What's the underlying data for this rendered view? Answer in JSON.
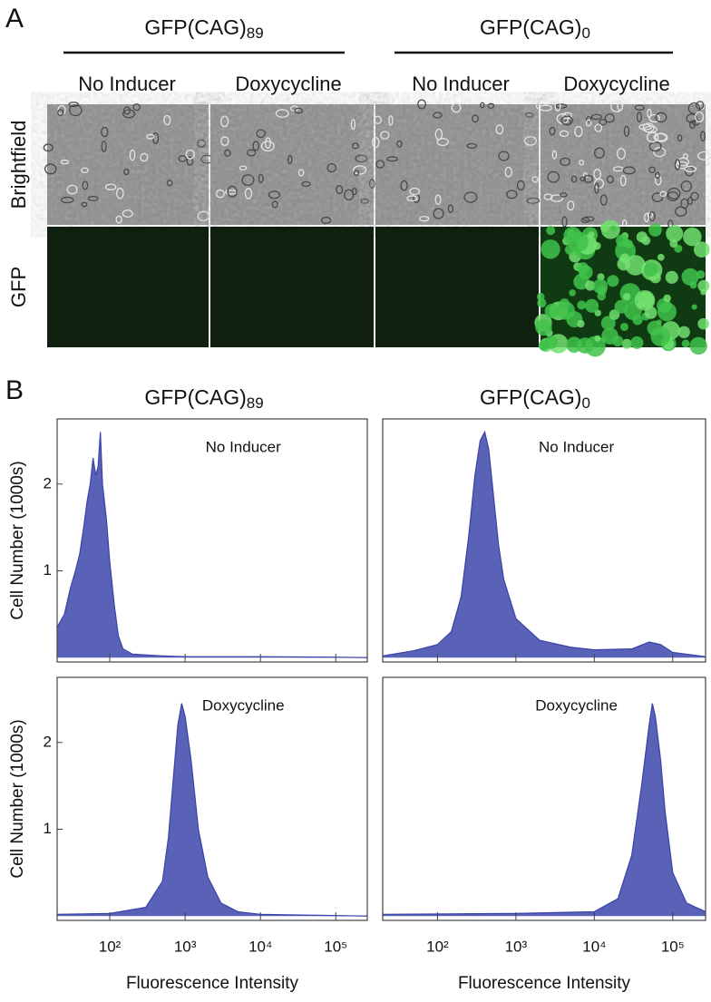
{
  "panel_a": {
    "label": "A",
    "groups": [
      {
        "title": "GFP(CAG)",
        "title_subscript": "89",
        "conditions": [
          "No Inducer",
          "Doxycycline"
        ]
      },
      {
        "title": "GFP(CAG)",
        "title_subscript": "0",
        "conditions": [
          "No Inducer",
          "Doxycycline"
        ]
      }
    ],
    "rows": [
      "Brightfield",
      "GFP"
    ]
  },
  "panel_b": {
    "label": "B",
    "columns": [
      {
        "title": "GFP(CAG)",
        "title_subscript": "89"
      },
      {
        "title": "GFP(CAG)",
        "title_subscript": "0"
      }
    ]
  },
  "chart_data": [
    {
      "type": "area",
      "annotation": "No Inducer",
      "ylabel": "Cell Number (1000s)",
      "color": "#5a62b8",
      "xlog": true,
      "xlim": [
        20,
        262144
      ],
      "ylim": [
        -0.05,
        2.75
      ],
      "yticks": [
        1,
        2
      ],
      "xticks": [
        100,
        1000,
        10000,
        100000
      ],
      "x": [
        20,
        25,
        30,
        35,
        40,
        45,
        50,
        55,
        60,
        65,
        70,
        75,
        80,
        90,
        100,
        115,
        130,
        150,
        200,
        500,
        1000,
        10000,
        100000,
        262144
      ],
      "values": [
        0.35,
        0.5,
        0.8,
        1.0,
        1.2,
        1.5,
        1.8,
        2.0,
        2.3,
        2.1,
        2.2,
        2.6,
        2.0,
        1.6,
        1.1,
        0.6,
        0.25,
        0.1,
        0.04,
        0.02,
        0.01,
        0.01,
        0.005,
        0
      ]
    },
    {
      "type": "area",
      "annotation": "No Inducer",
      "color": "#5a62b8",
      "xlog": true,
      "xlim": [
        20,
        262144
      ],
      "ylim": [
        -0.05,
        2.75
      ],
      "xticks": [
        100,
        1000,
        10000,
        100000
      ],
      "x": [
        20,
        50,
        100,
        150,
        200,
        250,
        300,
        350,
        400,
        450,
        500,
        600,
        700,
        1000,
        2000,
        5000,
        10000,
        30000,
        50000,
        70000,
        100000,
        262144
      ],
      "values": [
        0.02,
        0.08,
        0.15,
        0.3,
        0.7,
        1.4,
        2.1,
        2.5,
        2.6,
        2.4,
        2.0,
        1.3,
        0.9,
        0.45,
        0.2,
        0.12,
        0.09,
        0.1,
        0.18,
        0.15,
        0.06,
        0.01
      ]
    },
    {
      "type": "area",
      "annotation": "Doxycycline",
      "ylabel": "Cell Number (1000s)",
      "xlabel": "Fluorescence Intensity",
      "color": "#5a62b8",
      "xlog": true,
      "xlim": [
        20,
        262144
      ],
      "ylim": [
        -0.05,
        2.75
      ],
      "yticks": [
        1,
        2
      ],
      "xticks": [
        {
          "value": 100,
          "label": "10²"
        },
        {
          "value": 1000,
          "label": "10³"
        },
        {
          "value": 10000,
          "label": "10⁴"
        },
        {
          "value": 100000,
          "label": "10⁵"
        }
      ],
      "x": [
        20,
        100,
        300,
        500,
        600,
        700,
        800,
        900,
        1000,
        1200,
        1500,
        2000,
        3000,
        5000,
        10000,
        262144
      ],
      "values": [
        0.02,
        0.03,
        0.1,
        0.4,
        0.9,
        1.6,
        2.2,
        2.45,
        2.3,
        1.8,
        1.0,
        0.45,
        0.15,
        0.05,
        0.02,
        0
      ]
    },
    {
      "type": "area",
      "annotation": "Doxycycline",
      "xlabel": "Fluorescence Intensity",
      "color": "#5a62b8",
      "xlog": true,
      "xlim": [
        20,
        262144
      ],
      "ylim": [
        -0.05,
        2.75
      ],
      "xticks": [
        {
          "value": 100,
          "label": "10²"
        },
        {
          "value": 1000,
          "label": "10³"
        },
        {
          "value": 10000,
          "label": "10⁴"
        },
        {
          "value": 100000,
          "label": "10⁵"
        }
      ],
      "x": [
        20,
        1000,
        10000,
        20000,
        30000,
        40000,
        50000,
        55000,
        60000,
        70000,
        80000,
        100000,
        150000,
        262144
      ],
      "values": [
        0.02,
        0.03,
        0.05,
        0.2,
        0.7,
        1.5,
        2.2,
        2.45,
        2.3,
        1.8,
        1.2,
        0.5,
        0.15,
        0.05
      ]
    }
  ]
}
